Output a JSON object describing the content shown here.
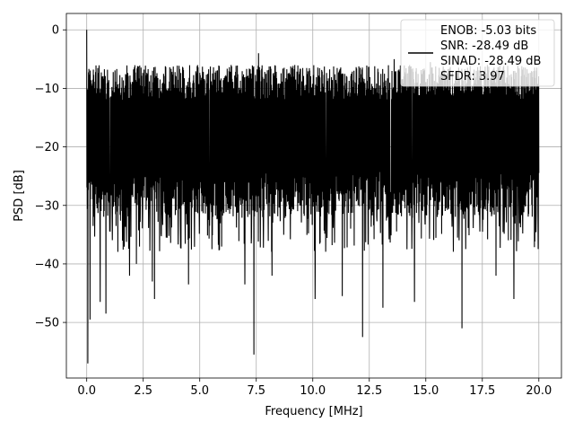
{
  "chart_data": {
    "type": "line",
    "title": "",
    "xlabel": "Frequency [MHz]",
    "ylabel": "PSD [dB]",
    "xlim": [
      -0.9,
      21.0
    ],
    "ylim": [
      -59.5,
      2.8
    ],
    "xticks": [
      0.0,
      2.5,
      5.0,
      7.5,
      10.0,
      12.5,
      15.0,
      17.5,
      20.0
    ],
    "xtick_labels": [
      "0.0",
      "2.5",
      "5.0",
      "7.5",
      "10.0",
      "12.5",
      "15.0",
      "17.5",
      "20.0"
    ],
    "yticks": [
      0,
      -10,
      -20,
      -30,
      -40,
      -50
    ],
    "ytick_labels": [
      "0",
      "−10",
      "−20",
      "−30",
      "−40",
      "−50"
    ],
    "grid": true,
    "legend_position": "top-right",
    "legend_lines": [
      "ENOB: -5.03 bits",
      "SNR: -28.49 dB",
      "SINAD: -28.49 dB",
      "SFDR: 3.97"
    ],
    "line_color": "#000000",
    "series": [
      {
        "x_range": [
          0.0,
          20.0
        ],
        "points": 2048,
        "typical_range_db": [
          -32,
          -6
        ],
        "peak": {
          "x": 0.0,
          "y": 0.0
        },
        "notable_dips": [
          {
            "x": 0.05,
            "y": -57.0
          },
          {
            "x": 0.15,
            "y": -49.5
          },
          {
            "x": 0.6,
            "y": -46.5
          },
          {
            "x": 0.85,
            "y": -48.5
          },
          {
            "x": 1.9,
            "y": -42.0
          },
          {
            "x": 2.2,
            "y": -40.0
          },
          {
            "x": 2.9,
            "y": -43.0
          },
          {
            "x": 3.0,
            "y": -46.0
          },
          {
            "x": 4.5,
            "y": -43.5
          },
          {
            "x": 7.0,
            "y": -43.5
          },
          {
            "x": 7.4,
            "y": -55.5
          },
          {
            "x": 8.2,
            "y": -42.0
          },
          {
            "x": 10.1,
            "y": -46.0
          },
          {
            "x": 11.3,
            "y": -45.5
          },
          {
            "x": 12.2,
            "y": -52.5
          },
          {
            "x": 13.1,
            "y": -47.5
          },
          {
            "x": 14.5,
            "y": -46.5
          },
          {
            "x": 16.6,
            "y": -51.0
          },
          {
            "x": 18.1,
            "y": -42.0
          },
          {
            "x": 18.9,
            "y": -46.0
          }
        ],
        "notable_peaks": [
          {
            "x": 7.6,
            "y": -4.0
          },
          {
            "x": 13.6,
            "y": -5.0
          },
          {
            "x": 15.2,
            "y": -5.5
          }
        ]
      }
    ]
  }
}
